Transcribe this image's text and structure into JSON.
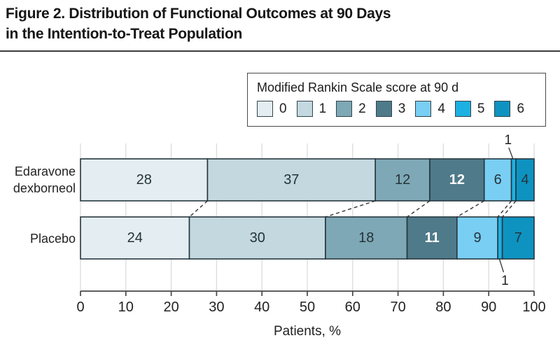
{
  "figure": {
    "title_line1": "Figure 2. Distribution of Functional Outcomes at 90 Days",
    "title_line2": "in the Intention-to-Treat Population"
  },
  "legend": {
    "title": "Modified Rankin Scale score at 90 d",
    "items": [
      {
        "label": "0",
        "color": "#e4edf1"
      },
      {
        "label": "1",
        "color": "#c3d8df"
      },
      {
        "label": "2",
        "color": "#7ea8b5"
      },
      {
        "label": "3",
        "color": "#4f7a8a"
      },
      {
        "label": "4",
        "color": "#79cef3"
      },
      {
        "label": "5",
        "color": "#1db0e2"
      },
      {
        "label": "6",
        "color": "#0e93c1"
      }
    ]
  },
  "chart_data": {
    "type": "bar",
    "subtype": "horizontal-stacked",
    "title": "Figure 2. Distribution of Functional Outcomes at 90 Days in the Intention-to-Treat Population",
    "categories": [
      [
        "Edaravone",
        "dexborneol"
      ],
      [
        "Placebo"
      ]
    ],
    "series": [
      {
        "name": "0",
        "color": "#e4edf1",
        "label_color": "#25333b",
        "values": [
          28,
          24
        ]
      },
      {
        "name": "1",
        "color": "#c3d8df",
        "label_color": "#25333b",
        "values": [
          37,
          30
        ]
      },
      {
        "name": "2",
        "color": "#7ea8b5",
        "label_color": "#25333b",
        "values": [
          12,
          18
        ]
      },
      {
        "name": "3",
        "color": "#4f7a8a",
        "label_color": "#ffffff",
        "label_bold": true,
        "values": [
          12,
          11
        ]
      },
      {
        "name": "4",
        "color": "#79cef3",
        "label_color": "#25333b",
        "values": [
          6,
          9
        ]
      },
      {
        "name": "5",
        "color": "#1db0e2",
        "label_color": "#25333b",
        "callout": true,
        "values": [
          1,
          1
        ]
      },
      {
        "name": "6",
        "color": "#0e93c1",
        "label_color": "#25333b",
        "values": [
          4,
          7
        ]
      }
    ],
    "xlabel": "Patients, %",
    "xlim": [
      0,
      100
    ],
    "xticks": [
      0,
      10,
      20,
      30,
      40,
      50,
      60,
      70,
      80,
      90,
      100
    ],
    "grid": true,
    "legend_position": "top-right",
    "colors": {
      "segment_border": "#26363e",
      "gridline": "#d9dcde",
      "axis": "#474747",
      "text": "#222222",
      "connector": "#333333"
    }
  }
}
